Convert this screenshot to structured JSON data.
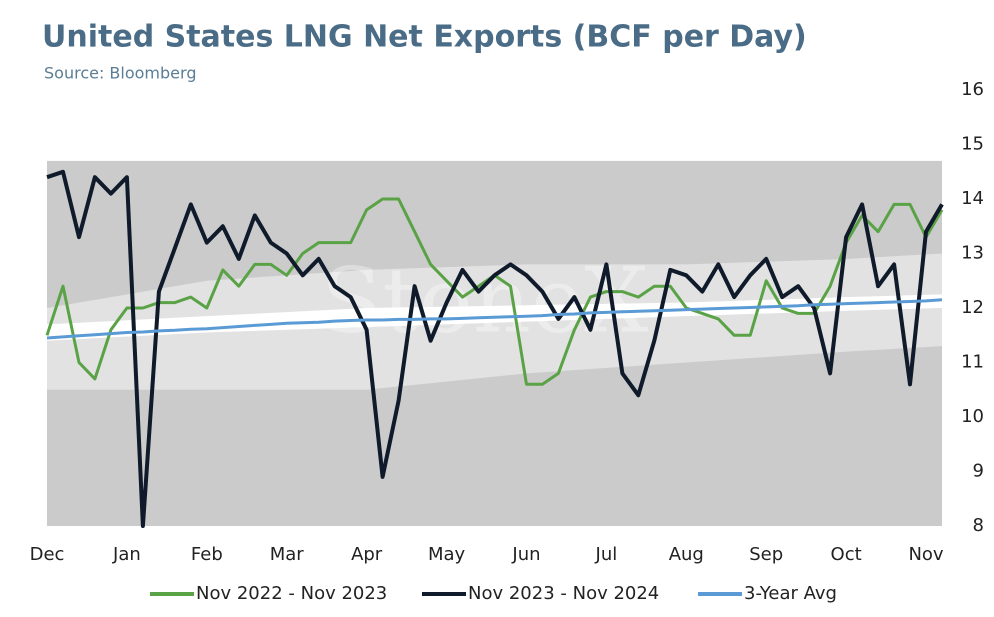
{
  "chart_data": {
    "type": "line",
    "title": "United States LNG Net Exports (BCF per Day)",
    "subtitle": "Source: Bloomberg",
    "watermark": "StoneX",
    "x": [
      0,
      0.2,
      0.4,
      0.6,
      0.8,
      1,
      1.2,
      1.4,
      1.6,
      1.8,
      2,
      2.2,
      2.4,
      2.6,
      2.8,
      3,
      3.2,
      3.4,
      3.6,
      3.8,
      4,
      4.2,
      4.4,
      4.6,
      4.8,
      5,
      5.2,
      5.4,
      5.6,
      5.8,
      6,
      6.2,
      6.4,
      6.6,
      6.8,
      7,
      7.2,
      7.4,
      7.6,
      7.8,
      8,
      8.2,
      8.4,
      8.6,
      8.8,
      9,
      9.2,
      9.4,
      9.6,
      9.8,
      10,
      10.2,
      10.4,
      10.6,
      10.8,
      11,
      11.2
    ],
    "xlim": [
      0,
      11.2
    ],
    "xticks": [
      {
        "value": 0,
        "label": "Dec"
      },
      {
        "value": 1,
        "label": "Jan"
      },
      {
        "value": 2,
        "label": "Feb"
      },
      {
        "value": 3,
        "label": "Mar"
      },
      {
        "value": 4,
        "label": "Apr"
      },
      {
        "value": 5,
        "label": "May"
      },
      {
        "value": 6,
        "label": "Jun"
      },
      {
        "value": 7,
        "label": "Jul"
      },
      {
        "value": 8,
        "label": "Aug"
      },
      {
        "value": 9,
        "label": "Sep"
      },
      {
        "value": 10,
        "label": "Oct"
      },
      {
        "value": 11,
        "label": "Nov"
      }
    ],
    "ylim": [
      8,
      16
    ],
    "yticks": [
      8,
      9,
      10,
      11,
      12,
      13,
      14,
      15,
      16
    ],
    "grid": false,
    "legend": "bottom",
    "band_x": [
      0,
      2,
      4,
      6,
      8,
      10,
      11.2
    ],
    "bands": [
      {
        "color": "#cbcbcb",
        "lower": [
          8,
          8,
          8,
          8,
          8,
          8,
          8
        ],
        "upper": [
          14.7,
          14.7,
          14.7,
          14.7,
          14.7,
          14.7,
          14.7
        ]
      },
      {
        "color": "#e2e2e2",
        "lower": [
          10.5,
          10.5,
          10.5,
          10.8,
          11.0,
          11.2,
          11.3
        ],
        "upper": [
          12.0,
          12.5,
          12.7,
          12.8,
          12.8,
          12.9,
          13.0
        ]
      },
      {
        "color": "#ffffff",
        "lower": [
          11.4,
          11.55,
          11.65,
          11.75,
          11.85,
          11.95,
          12.0
        ],
        "upper": [
          11.7,
          11.85,
          12.0,
          12.05,
          12.1,
          12.2,
          12.25
        ]
      }
    ],
    "series": [
      {
        "name": "Nov 2022 - Nov 2023",
        "color": "#5aa246",
        "width": 3,
        "values": [
          11.5,
          12.4,
          11.0,
          10.7,
          11.6,
          12.0,
          12.0,
          12.1,
          12.1,
          12.2,
          12.0,
          12.7,
          12.4,
          12.8,
          12.8,
          12.6,
          13.0,
          13.2,
          13.2,
          13.2,
          13.8,
          14.0,
          14.0,
          13.4,
          12.8,
          12.5,
          12.2,
          12.4,
          12.6,
          12.4,
          10.6,
          10.6,
          10.8,
          11.6,
          12.2,
          12.3,
          12.3,
          12.2,
          12.4,
          12.4,
          12.0,
          11.9,
          11.8,
          11.5,
          11.5,
          12.5,
          12.0,
          11.9,
          11.9,
          12.4,
          13.2,
          13.7,
          13.4,
          13.9,
          13.9,
          13.3,
          13.8
        ]
      },
      {
        "name": "Nov 2023 - Nov 2024",
        "color": "#0f1a2a",
        "width": 4,
        "values": [
          14.4,
          14.5,
          13.3,
          14.4,
          14.1,
          14.4,
          8.0,
          12.3,
          13.1,
          13.9,
          13.2,
          13.5,
          12.9,
          13.7,
          13.2,
          13.0,
          12.6,
          12.9,
          12.4,
          12.2,
          11.6,
          8.9,
          10.3,
          12.4,
          11.4,
          12.1,
          12.7,
          12.3,
          12.6,
          12.8,
          12.6,
          12.3,
          11.8,
          12.2,
          11.6,
          12.8,
          10.8,
          10.4,
          11.4,
          12.7,
          12.6,
          12.3,
          12.8,
          12.2,
          12.6,
          12.9,
          12.2,
          12.4,
          12.0,
          10.8,
          13.3,
          13.9,
          12.4,
          12.8,
          10.6,
          13.4,
          13.9
        ]
      },
      {
        "name": "3-Year Avg",
        "color": "#5b9bd5",
        "width": 3,
        "values": [
          11.45,
          11.47,
          11.49,
          11.51,
          11.53,
          11.55,
          11.56,
          11.58,
          11.59,
          11.61,
          11.62,
          11.64,
          11.66,
          11.68,
          11.7,
          11.72,
          11.73,
          11.74,
          11.76,
          11.77,
          11.78,
          11.78,
          11.79,
          11.79,
          11.8,
          11.8,
          11.81,
          11.82,
          11.83,
          11.84,
          11.85,
          11.86,
          11.88,
          11.89,
          11.91,
          11.92,
          11.93,
          11.94,
          11.95,
          11.96,
          11.97,
          11.98,
          11.99,
          12.0,
          12.01,
          12.02,
          12.03,
          12.04,
          12.06,
          12.07,
          12.08,
          12.09,
          12.1,
          12.11,
          12.12,
          12.13,
          12.15
        ]
      }
    ]
  }
}
